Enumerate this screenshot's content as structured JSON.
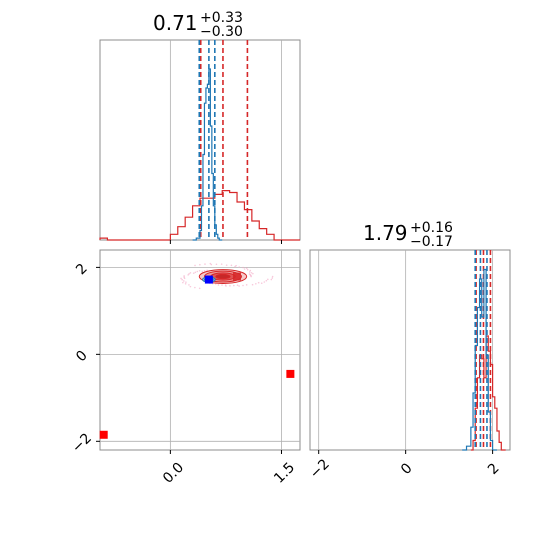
{
  "chart_data": {
    "type": "corner",
    "parameters": [
      {
        "title_value": "0.71",
        "title_plus": "+0.33",
        "title_minus": "−0.30",
        "range": [
          -0.95,
          1.75
        ],
        "ticks": [
          0.0,
          1.5
        ],
        "tick_labels": [
          "0.0",
          "1.5"
        ],
        "grid_lines": [
          0.0,
          1.5
        ]
      },
      {
        "title_value": "1.79",
        "title_plus": "+0.16",
        "title_minus": "−0.17",
        "range": [
          -2.2,
          2.4
        ],
        "ticks": [
          -2,
          0,
          2
        ],
        "tick_labels": [
          "−2",
          "0",
          "2"
        ],
        "grid_lines": [
          -2,
          0,
          2
        ]
      }
    ],
    "series": [
      {
        "color": "#d62728",
        "hist_x": [
          [
            -0.95,
            -0.85,
            0.0,
            0.1,
            0.2,
            0.3,
            0.4,
            0.5,
            0.6,
            0.7,
            0.8,
            0.9,
            1.0,
            1.1,
            1.2,
            1.3,
            1.4,
            1.5,
            1.75
          ],
          [
            1.5,
            1.55,
            1.6,
            1.65,
            1.7,
            1.75,
            1.8,
            1.85,
            1.9,
            1.95,
            2.0,
            2.05,
            2.1,
            2.15,
            2.2,
            2.3
          ]
        ],
        "hist_y": [
          [
            0.01,
            0.0,
            0.03,
            0.07,
            0.12,
            0.18,
            0.22,
            0.22,
            0.24,
            0.26,
            0.25,
            0.2,
            0.16,
            0.1,
            0.06,
            0.03,
            0.0,
            0.0
          ],
          [
            0.0,
            0.05,
            0.22,
            0.38,
            0.5,
            0.48,
            0.38,
            0.6,
            0.52,
            0.45,
            0.28,
            0.22,
            0.1,
            0.04,
            0.0
          ]
        ],
        "quantile_lines": [
          [
            0.41,
            0.71,
            1.04
          ],
          [
            1.62,
            1.79,
            1.95
          ]
        ],
        "contour_center": [
          0.71,
          1.79
        ],
        "contour_widths": [
          0.64,
          0.32
        ],
        "outlier_points": [
          [
            -0.9,
            -1.85
          ],
          [
            1.62,
            -0.45
          ]
        ]
      },
      {
        "color": "#1f77b4",
        "hist_x": [
          [
            0.3,
            0.35,
            0.4,
            0.42,
            0.44,
            0.46,
            0.48,
            0.5,
            0.52,
            0.54,
            0.56,
            0.58,
            0.6,
            0.62,
            0.64,
            0.66,
            0.7
          ],
          [
            1.3,
            1.4,
            1.5,
            1.55,
            1.6,
            1.65,
            1.7,
            1.75,
            1.8,
            1.85,
            1.9,
            1.95,
            2.0,
            2.1
          ]
        ],
        "hist_y": [
          [
            0.0,
            0.01,
            0.05,
            0.18,
            0.45,
            0.72,
            0.8,
            0.82,
            0.9,
            0.6,
            0.35,
            0.18,
            0.08,
            0.03,
            0.01,
            0.0
          ],
          [
            0.0,
            0.02,
            0.12,
            0.3,
            0.55,
            0.75,
            0.9,
            0.7,
            0.95,
            0.5,
            0.2,
            0.05,
            0.0
          ]
        ],
        "quantile_lines": [
          [
            0.39,
            0.52,
            0.6
          ],
          [
            1.6,
            1.72,
            1.87
          ]
        ],
        "contour_center": [
          0.52,
          1.72
        ],
        "contour_widths": [
          0.17,
          0.12
        ]
      }
    ],
    "marker_point": [
      0.52,
      1.72
    ],
    "marker_color": "#0000ff",
    "grid": true
  }
}
